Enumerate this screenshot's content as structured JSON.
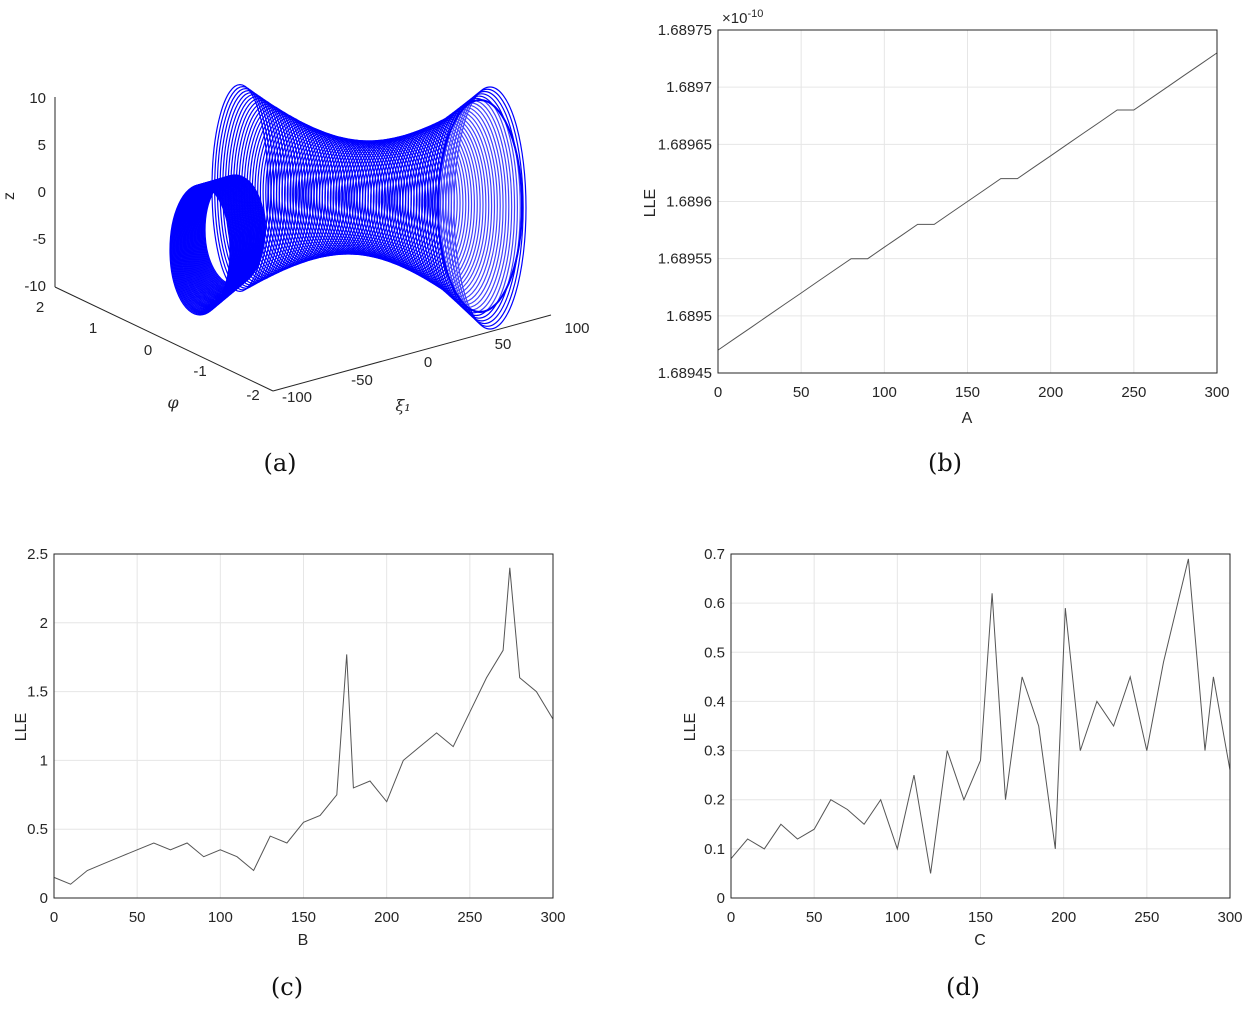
{
  "chart_data": [
    {
      "panel": "a",
      "type": "scatter",
      "caption": "(a)",
      "xlabel": "ξ₁",
      "ylabel": "φ",
      "zlabel": "z",
      "x_ticks": [
        "-100",
        "-50",
        "0",
        "50",
        "100"
      ],
      "y_ticks": [
        "-2",
        "-1",
        "0",
        "1",
        "2"
      ],
      "z_ticks": [
        "-10",
        "-5",
        "0",
        "5",
        "10"
      ],
      "xlim": [
        -100,
        100
      ],
      "ylim": [
        -2,
        2
      ],
      "zlim": [
        -10,
        10
      ],
      "surface_color": "#0000ff"
    },
    {
      "panel": "b",
      "type": "line",
      "caption": "(b)",
      "xlabel": "A",
      "ylabel": "LLE",
      "exponent_label": "×10",
      "exponent_power": "-10",
      "xlim": [
        0,
        300
      ],
      "ylim": [
        1.68945,
        1.68975
      ],
      "x_ticks": [
        "0",
        "50",
        "100",
        "150",
        "200",
        "250",
        "300"
      ],
      "y_ticks": [
        "1.68945",
        "1.6895",
        "1.68955",
        "1.6896",
        "1.68965",
        "1.6897",
        "1.68975"
      ],
      "x": [
        0,
        10,
        20,
        30,
        40,
        50,
        60,
        70,
        80,
        90,
        100,
        110,
        120,
        130,
        140,
        150,
        160,
        170,
        180,
        190,
        200,
        210,
        220,
        230,
        240,
        250,
        260,
        270,
        280,
        290,
        300
      ],
      "values": [
        1.68947,
        1.68948,
        1.68949,
        1.6895,
        1.68951,
        1.68952,
        1.68953,
        1.68954,
        1.68955,
        1.68955,
        1.68956,
        1.68957,
        1.68958,
        1.68958,
        1.68959,
        1.6896,
        1.68961,
        1.68962,
        1.68962,
        1.68963,
        1.68964,
        1.68965,
        1.68966,
        1.68967,
        1.68968,
        1.68968,
        1.68969,
        1.6897,
        1.68971,
        1.68972,
        1.68973
      ],
      "grid": true
    },
    {
      "panel": "c",
      "type": "line",
      "caption": "(c)",
      "xlabel": "B",
      "ylabel": "LLE",
      "xlim": [
        0,
        300
      ],
      "ylim": [
        0,
        2.5
      ],
      "x_ticks": [
        "0",
        "50",
        "100",
        "150",
        "200",
        "250",
        "300"
      ],
      "y_ticks": [
        "0",
        "0.5",
        "1",
        "1.5",
        "2",
        "2.5"
      ],
      "x": [
        0,
        10,
        20,
        30,
        40,
        50,
        60,
        70,
        80,
        90,
        100,
        110,
        120,
        130,
        140,
        150,
        160,
        170,
        176,
        180,
        190,
        200,
        210,
        220,
        230,
        240,
        250,
        260,
        270,
        274,
        280,
        290,
        300
      ],
      "values": [
        0.15,
        0.1,
        0.2,
        0.25,
        0.3,
        0.35,
        0.4,
        0.35,
        0.4,
        0.3,
        0.35,
        0.3,
        0.2,
        0.45,
        0.4,
        0.55,
        0.6,
        0.75,
        1.77,
        0.8,
        0.85,
        0.7,
        1.0,
        1.1,
        1.2,
        1.1,
        1.35,
        1.6,
        1.8,
        2.4,
        1.6,
        1.5,
        1.3
      ],
      "grid": true
    },
    {
      "panel": "d",
      "type": "line",
      "caption": "(d)",
      "xlabel": "C",
      "ylabel": "LLE",
      "xlim": [
        0,
        300
      ],
      "ylim": [
        0,
        0.7
      ],
      "x_ticks": [
        "0",
        "50",
        "100",
        "150",
        "200",
        "250",
        "300"
      ],
      "y_ticks": [
        "0",
        "0.1",
        "0.2",
        "0.3",
        "0.4",
        "0.5",
        "0.6",
        "0.7"
      ],
      "x": [
        0,
        10,
        20,
        30,
        40,
        50,
        60,
        70,
        80,
        90,
        100,
        110,
        120,
        130,
        140,
        150,
        157,
        165,
        175,
        185,
        195,
        201,
        210,
        220,
        230,
        240,
        250,
        260,
        275,
        285,
        290,
        300
      ],
      "values": [
        0.08,
        0.12,
        0.1,
        0.15,
        0.12,
        0.14,
        0.2,
        0.18,
        0.15,
        0.2,
        0.1,
        0.25,
        0.05,
        0.3,
        0.2,
        0.28,
        0.62,
        0.2,
        0.45,
        0.35,
        0.1,
        0.59,
        0.3,
        0.4,
        0.35,
        0.45,
        0.3,
        0.48,
        0.69,
        0.3,
        0.45,
        0.26
      ],
      "grid": true
    }
  ]
}
